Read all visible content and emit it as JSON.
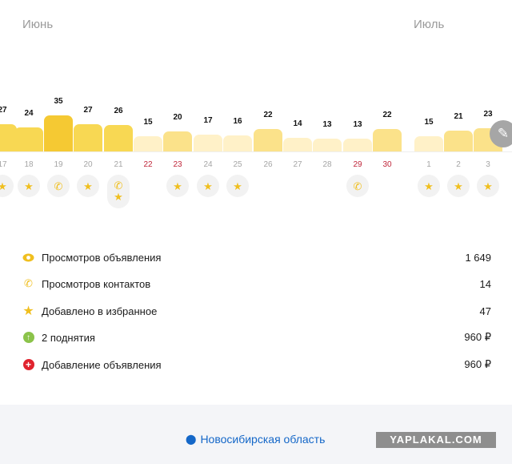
{
  "months": {
    "june": "Июнь",
    "july": "Июль"
  },
  "chart_data": {
    "type": "bar",
    "categories": [
      "17",
      "18",
      "19",
      "20",
      "21",
      "22",
      "23",
      "24",
      "25",
      "26",
      "27",
      "28",
      "29",
      "30",
      "1",
      "2",
      "3"
    ],
    "values": [
      27,
      24,
      35,
      27,
      26,
      15,
      20,
      17,
      16,
      22,
      14,
      13,
      13,
      22,
      15,
      21,
      23
    ],
    "weekend_days": [
      "22",
      "23",
      "29",
      "30"
    ],
    "marks_per_day": [
      [
        "star"
      ],
      [
        "star"
      ],
      [
        "phone"
      ],
      [
        "star"
      ],
      [
        "phone",
        "star"
      ],
      [],
      [
        "star"
      ],
      [
        "star"
      ],
      [
        "star"
      ],
      [],
      [],
      [],
      [
        "phone"
      ],
      [],
      [
        "star"
      ],
      [
        "star"
      ],
      [
        "star"
      ]
    ],
    "colors": {
      "low": "#fff1c8",
      "mid": "#fbe28a",
      "high": "#f8d853",
      "top": "#f5c933",
      "icon": "#f0bf1f",
      "weekend": "#c0283c"
    }
  },
  "stats": [
    {
      "icon": "eye-icon",
      "label": "Просмотров объявления",
      "value": "1 649"
    },
    {
      "icon": "phone-icon",
      "label": "Просмотров контактов",
      "value": "14"
    },
    {
      "icon": "star-icon",
      "label": "Добавлено в избранное",
      "value": "47"
    },
    {
      "icon": "arrow-up-icon",
      "label": "2 поднятия",
      "value": "960 ₽"
    },
    {
      "icon": "plus-icon",
      "label": "Добавление объявления",
      "value": "960 ₽"
    }
  ],
  "footer": {
    "region": "Новосибирская область"
  },
  "watermark": "YAPLAKAL.COM"
}
